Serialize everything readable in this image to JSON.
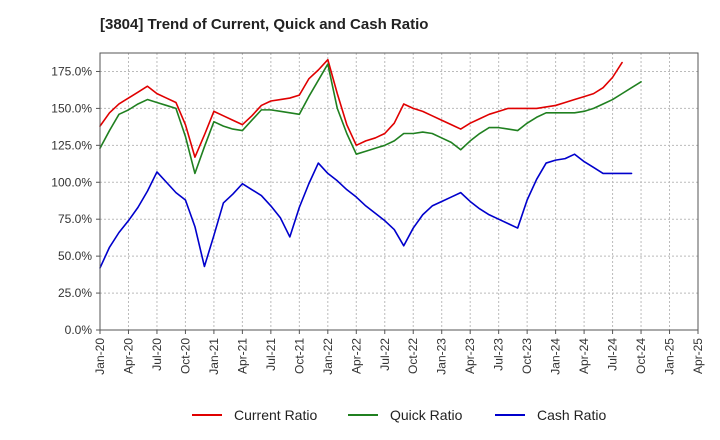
{
  "chart_data": {
    "type": "line",
    "title": "[3804]  Trend of Current, Quick and Cash Ratio",
    "xlabel": "",
    "ylabel": "",
    "ylim": [
      0,
      187.5
    ],
    "yticks": [
      0,
      25,
      50,
      75,
      100,
      125,
      150,
      175
    ],
    "ytick_labels": [
      "0.0%",
      "25.0%",
      "50.0%",
      "75.0%",
      "100.0%",
      "125.0%",
      "150.0%",
      "175.0%"
    ],
    "xlim": [
      0,
      63
    ],
    "xticks": [
      0,
      3,
      6,
      9,
      12,
      15,
      18,
      21,
      24,
      27,
      30,
      33,
      36,
      39,
      42,
      45,
      48,
      51,
      54,
      57,
      60,
      63
    ],
    "xtick_labels": [
      "Jan-20",
      "Apr-20",
      "Jul-20",
      "Oct-20",
      "Jan-21",
      "Apr-21",
      "Jul-21",
      "Oct-21",
      "Jan-22",
      "Apr-22",
      "Jul-22",
      "Oct-22",
      "Jan-23",
      "Apr-23",
      "Jul-23",
      "Oct-23",
      "Jan-24",
      "Apr-24",
      "Jul-24",
      "Oct-24",
      "Jan-25",
      "Apr-25"
    ],
    "legend_position": "bottom",
    "grid": true,
    "series": [
      {
        "name": "Current Ratio",
        "color": "#e00000",
        "x": [
          0,
          1,
          2,
          3,
          4,
          5,
          6,
          7,
          8,
          9,
          10,
          11,
          12,
          13,
          14,
          15,
          16,
          17,
          18,
          19,
          20,
          21,
          22,
          23,
          24,
          25,
          26,
          27,
          28,
          29,
          30,
          31,
          32,
          33,
          34,
          35,
          36,
          37,
          38,
          39,
          40,
          41,
          42,
          43,
          44,
          45,
          46,
          47,
          48,
          49,
          50,
          51,
          52,
          53,
          54,
          55,
          56,
          57,
          58,
          59,
          60
        ],
        "values": [
          138,
          147,
          153,
          157,
          161,
          165,
          160,
          157,
          154,
          139,
          117,
          132,
          148,
          145,
          142,
          139,
          145,
          152,
          155,
          156,
          157,
          159,
          170,
          176,
          183,
          160,
          139,
          125,
          128,
          130,
          133,
          140,
          153,
          150,
          148,
          145,
          142,
          139,
          136,
          140,
          143,
          146,
          148,
          150,
          150,
          150,
          150,
          151,
          152,
          154,
          156,
          158,
          160,
          164,
          171,
          181,
          null,
          null,
          null,
          null,
          null
        ]
      },
      {
        "name": "Quick Ratio",
        "color": "#208020",
        "x": [
          0,
          1,
          2,
          3,
          4,
          5,
          6,
          7,
          8,
          9,
          10,
          11,
          12,
          13,
          14,
          15,
          16,
          17,
          18,
          19,
          20,
          21,
          22,
          23,
          24,
          25,
          26,
          27,
          28,
          29,
          30,
          31,
          32,
          33,
          34,
          35,
          36,
          37,
          38,
          39,
          40,
          41,
          42,
          43,
          44,
          45,
          46,
          47,
          48,
          49,
          50,
          51,
          52,
          53,
          54,
          55,
          56,
          57,
          58,
          59,
          60
        ],
        "values": [
          123,
          135,
          146,
          149,
          153,
          156,
          154,
          152,
          150,
          131,
          106,
          124,
          141,
          138,
          136,
          135,
          142,
          149,
          149,
          148,
          147,
          146,
          158,
          169,
          180,
          150,
          133,
          119,
          121,
          123,
          125,
          128,
          133,
          133,
          134,
          133,
          130,
          127,
          122,
          128,
          133,
          137,
          137,
          136,
          135,
          140,
          144,
          147,
          147,
          147,
          147,
          148,
          150,
          153,
          156,
          160,
          164,
          168,
          null,
          null,
          null
        ],
        "note": "values beyond index 57 absent"
      },
      {
        "name": "Cash Ratio",
        "color": "#0000cc",
        "x": [
          0,
          1,
          2,
          3,
          4,
          5,
          6,
          7,
          8,
          9,
          10,
          11,
          12,
          13,
          14,
          15,
          16,
          17,
          18,
          19,
          20,
          21,
          22,
          23,
          24,
          25,
          26,
          27,
          28,
          29,
          30,
          31,
          32,
          33,
          34,
          35,
          36,
          37,
          38,
          39,
          40,
          41,
          42,
          43,
          44,
          45,
          46,
          47,
          48,
          49,
          50,
          51,
          52,
          53,
          54,
          55,
          56,
          57,
          58,
          59,
          60
        ],
        "values": [
          42,
          56,
          66,
          74,
          83,
          94,
          107,
          100,
          93,
          88,
          70,
          43,
          64,
          86,
          92,
          99,
          95,
          91,
          84,
          76,
          63,
          83,
          99,
          113,
          106,
          101,
          95,
          90,
          84,
          79,
          74,
          68,
          57,
          69,
          78,
          84,
          87,
          90,
          93,
          87,
          82,
          78,
          75,
          72,
          69,
          88,
          102,
          113,
          115,
          116,
          119,
          114,
          110,
          106,
          106,
          106,
          106,
          null,
          null,
          null,
          null
        ]
      }
    ]
  }
}
